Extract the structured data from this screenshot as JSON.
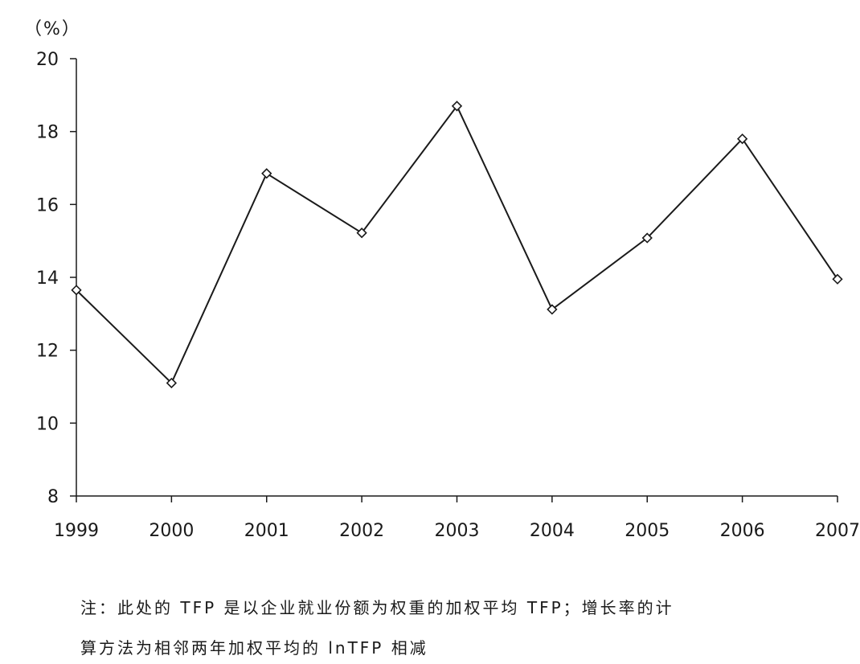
{
  "chart_data": {
    "type": "line",
    "unit_label": "（%）",
    "categories": [
      "1999",
      "2000",
      "2001",
      "2002",
      "2003",
      "2004",
      "2005",
      "2006",
      "2007"
    ],
    "values": [
      13.65,
      11.1,
      16.85,
      15.22,
      18.7,
      13.12,
      15.08,
      17.8,
      13.95
    ],
    "ylim": [
      8,
      20
    ],
    "yticks": [
      "8",
      "10",
      "12",
      "14",
      "16",
      "18",
      "20"
    ],
    "marker": "diamond",
    "line_color": "#1a1a1a",
    "grid": false
  },
  "note": {
    "line1": "注：此处的 TFP 是以企业就业份额为权重的加权平均 TFP；增长率的计",
    "line2": "算方法为相邻两年加权平均的 lnTFP 相减"
  }
}
